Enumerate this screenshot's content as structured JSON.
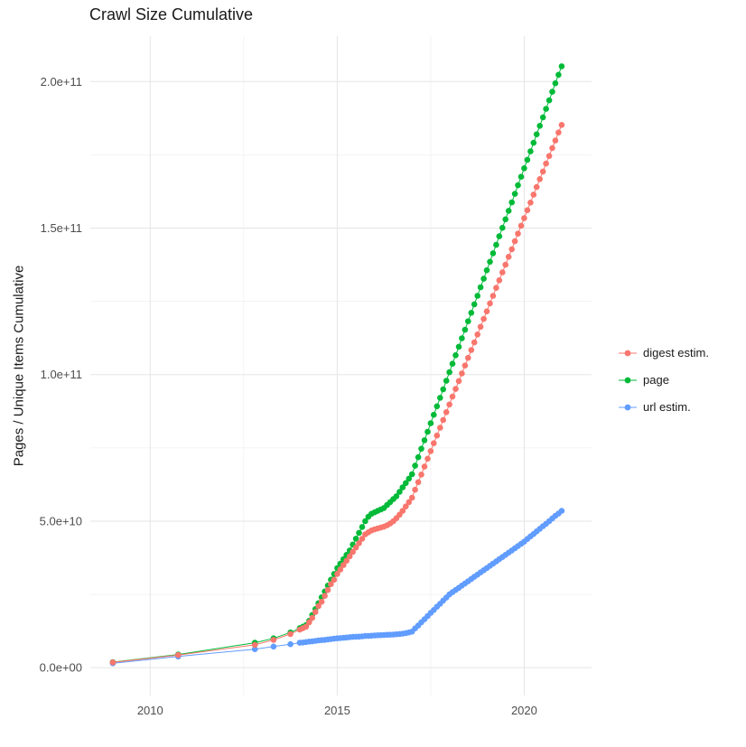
{
  "title": "Crawl Size Cumulative",
  "chart_data": {
    "type": "scatter",
    "title": "Crawl Size Cumulative",
    "xlabel": "",
    "ylabel": "Pages / Unique Items Cumulative",
    "legend_position": "right",
    "grid": true,
    "xlim": [
      2008.4,
      2021.8
    ],
    "ylim": [
      -9500000000.0,
      215500000000.0
    ],
    "x_ticks": [
      2010,
      2015,
      2020
    ],
    "x_tick_labels": [
      "2010",
      "2015",
      "2020"
    ],
    "x_minor_ticks": [
      2012.5,
      2017.5
    ],
    "y_ticks": [
      0,
      50000000000.0,
      100000000000.0,
      150000000000.0,
      200000000000.0
    ],
    "y_tick_labels": [
      "0.0e+00",
      "5.0e+10",
      "1.0e+11",
      "1.5e+11",
      "2.0e+11"
    ],
    "y_minor_ticks": [
      25000000000.0,
      75000000000.0,
      125000000000.0,
      175000000000.0
    ],
    "x": [
      2009,
      2010.75,
      2012.8,
      2013.3,
      2013.75,
      2014,
      2014.083,
      2014.167,
      2014.25,
      2014.333,
      2014.417,
      2014.5,
      2014.583,
      2014.667,
      2014.75,
      2014.833,
      2014.917,
      2015,
      2015.083,
      2015.167,
      2015.25,
      2015.333,
      2015.417,
      2015.5,
      2015.583,
      2015.667,
      2015.75,
      2015.833,
      2015.917,
      2016,
      2016.083,
      2016.167,
      2016.25,
      2016.333,
      2016.417,
      2016.5,
      2016.583,
      2016.667,
      2016.75,
      2016.833,
      2016.917,
      2017,
      2017.083,
      2017.167,
      2017.25,
      2017.333,
      2017.417,
      2017.5,
      2017.583,
      2017.667,
      2017.75,
      2017.833,
      2017.917,
      2018,
      2018.083,
      2018.167,
      2018.25,
      2018.333,
      2018.417,
      2018.5,
      2018.583,
      2018.667,
      2018.75,
      2018.833,
      2018.917,
      2019,
      2019.083,
      2019.167,
      2019.25,
      2019.333,
      2019.417,
      2019.5,
      2019.583,
      2019.667,
      2019.75,
      2019.833,
      2019.917,
      2020,
      2020.083,
      2020.167,
      2020.25,
      2020.333,
      2020.417,
      2020.5,
      2020.583,
      2020.667,
      2020.75,
      2020.833,
      2020.917,
      2021
    ],
    "series": [
      {
        "name": "digest estim.",
        "color": "#F8766D",
        "values": [
          1800000000.0,
          4300000000.0,
          7800000000.0,
          9500000000.0,
          11500000000.0,
          13000000000.0,
          13500000000.0,
          14000000000.0,
          15500000000.0,
          17000000000.0,
          19000000000.0,
          21000000000.0,
          22500000000.0,
          24500000000.0,
          26500000000.0,
          28500000000.0,
          30000000000.0,
          32000000000.0,
          33500000000.0,
          35000000000.0,
          36500000000.0,
          38000000000.0,
          39500000000.0,
          41000000000.0,
          42500000000.0,
          44000000000.0,
          45500000000.0,
          46200000000.0,
          46800000000.0,
          47200000000.0,
          47500000000.0,
          47800000000.0,
          48100000000.0,
          48600000000.0,
          49200000000.0,
          50000000000.0,
          51000000000.0,
          52200000000.0,
          53500000000.0,
          55000000000.0,
          56500000000.0,
          58000000000.0,
          60700000000.0,
          63300000000.0,
          65900000000.0,
          68600000000.0,
          71300000000.0,
          73900000000.0,
          76600000000.0,
          79200000000.0,
          81900000000.0,
          84500000000.0,
          87200000000.0,
          89800000000.0,
          92500000000.0,
          95100000000.0,
          97800000000.0,
          100400000000.0,
          103100000000.0,
          105700000000.0,
          108400000000.0,
          111000000000.0,
          113700000000.0,
          116300000000.0,
          119000000000.0,
          121600000000.0,
          124300000000.0,
          126900000000.0,
          129600000000.0,
          132200000000.0,
          134900000000.0,
          137500000000.0,
          140200000000.0,
          142800000000.0,
          145500000000.0,
          148100000000.0,
          150800000000.0,
          153400000000.0,
          156100000000.0,
          158700000000.0,
          161400000000.0,
          164000000000.0,
          166700000000.0,
          169300000000.0,
          172000000000.0,
          174600000000.0,
          177300000000.0,
          179900000000.0,
          182600000000.0,
          185200000000.0
        ]
      },
      {
        "name": "page",
        "color": "#00BA38",
        "values": [
          1900000000.0,
          4500000000.0,
          8500000000.0,
          10000000000.0,
          12000000000.0,
          13500000000.0,
          14000000000.0,
          14500000000.0,
          16000000000.0,
          18000000000.0,
          20000000000.0,
          22000000000.0,
          24000000000.0,
          26000000000.0,
          28000000000.0,
          30000000000.0,
          32000000000.0,
          34000000000.0,
          35500000000.0,
          37000000000.0,
          38500000000.0,
          40000000000.0,
          42000000000.0,
          44000000000.0,
          46000000000.0,
          48000000000.0,
          50000000000.0,
          51500000000.0,
          52500000000.0,
          53000000000.0,
          53500000000.0,
          54000000000.0,
          54500000000.0,
          55500000000.0,
          56500000000.0,
          57500000000.0,
          58500000000.0,
          60000000000.0,
          61500000000.0,
          63000000000.0,
          64500000000.0,
          66000000000.0,
          68900000000.0,
          71800000000.0,
          74700000000.0,
          77600000000.0,
          80500000000.0,
          83400000000.0,
          86300000000.0,
          89200000000.0,
          92100000000.0,
          95000000000.0,
          97900000000.0,
          100800000000.0,
          103700000000.0,
          106600000000.0,
          109500000000.0,
          112400000000.0,
          115300000000.0,
          118200000000.0,
          121100000000.0,
          124000000000.0,
          126900000000.0,
          129800000000.0,
          132700000000.0,
          135600000000.0,
          138500000000.0,
          141400000000.0,
          144300000000.0,
          147200000000.0,
          150100000000.0,
          153000000000.0,
          155900000000.0,
          158800000000.0,
          161700000000.0,
          164600000000.0,
          167500000000.0,
          170400000000.0,
          173300000000.0,
          176200000000.0,
          179100000000.0,
          182000000000.0,
          184900000000.0,
          187800000000.0,
          190700000000.0,
          193600000000.0,
          196500000000.0,
          199400000000.0,
          202300000000.0,
          205200000000.0
        ]
      },
      {
        "name": "url estim.",
        "color": "#619CFF",
        "values": [
          1500000000.0,
          3800000000.0,
          6300000000.0,
          7200000000.0,
          8000000000.0,
          8500000000.0,
          8600000000.0,
          8750000000.0,
          8900000000.0,
          9000000000.0,
          9150000000.0,
          9300000000.0,
          9400000000.0,
          9500000000.0,
          9650000000.0,
          9750000000.0,
          9900000000.0,
          10000000000.0,
          10100000000.0,
          10200000000.0,
          10300000000.0,
          10400000000.0,
          10500000000.0,
          10550000000.0,
          10600000000.0,
          10700000000.0,
          10800000000.0,
          10850000000.0,
          10900000000.0,
          11000000000.0,
          11050000000.0,
          11100000000.0,
          11150000000.0,
          11200000000.0,
          11250000000.0,
          11300000000.0,
          11400000000.0,
          11500000000.0,
          11600000000.0,
          11800000000.0,
          12000000000.0,
          12300000000.0,
          13400000000.0,
          14400000000.0,
          15500000000.0,
          16500000000.0,
          17600000000.0,
          18700000000.0,
          19700000000.0,
          20800000000.0,
          21800000000.0,
          22900000000.0,
          23900000000.0,
          25000000000.0,
          25750000000.0,
          26500000000.0,
          27250000000.0,
          28000000000.0,
          28750000000.0,
          29500000000.0,
          30250000000.0,
          31000000000.0,
          31750000000.0,
          32500000000.0,
          33250000000.0,
          34000000000.0,
          34750000000.0,
          35500000000.0,
          36250000000.0,
          37000000000.0,
          37750000000.0,
          38500000000.0,
          39250000000.0,
          40000000000.0,
          40750000000.0,
          41500000000.0,
          42250000000.0,
          43000000000.0,
          43900000000.0,
          44800000000.0,
          45600000000.0,
          46500000000.0,
          47400000000.0,
          48300000000.0,
          49100000000.0,
          50000000000.0,
          50900000000.0,
          51800000000.0,
          52600000000.0,
          53500000000.0
        ]
      }
    ]
  }
}
